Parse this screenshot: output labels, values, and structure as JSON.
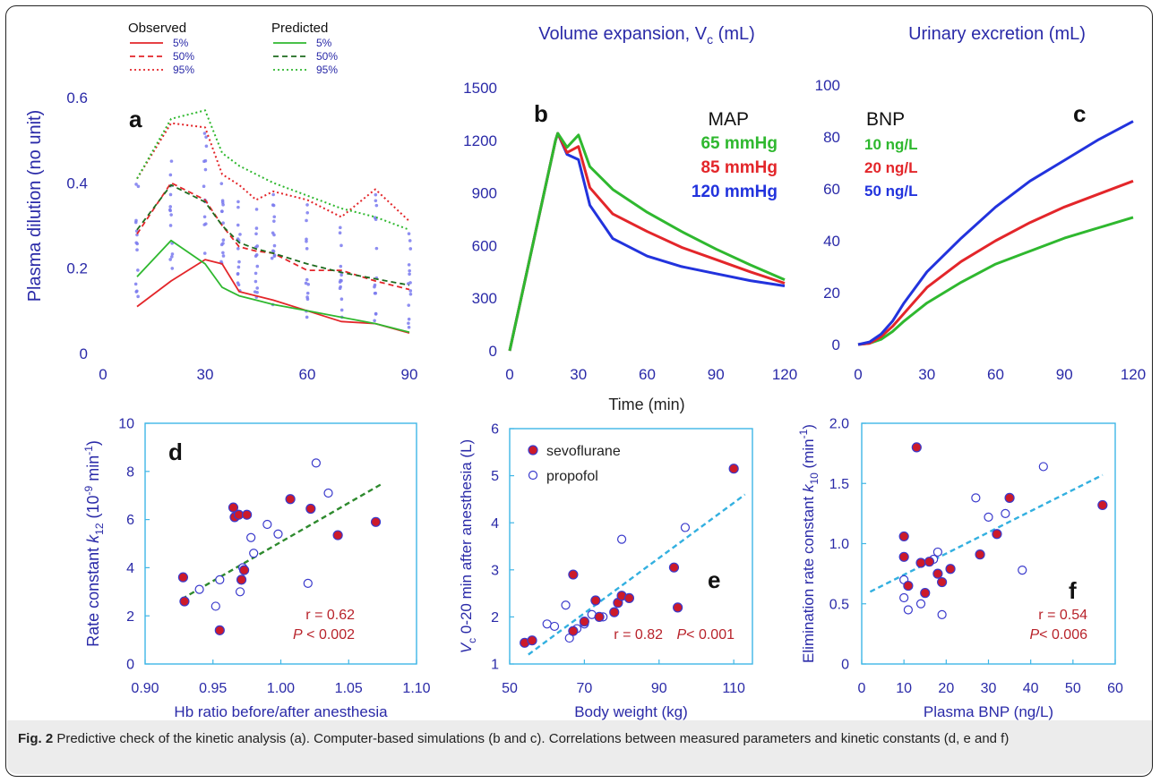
{
  "colors": {
    "blue_text": "#2a2aa8",
    "red": "#e3262a",
    "green": "#2fb82f",
    "darkgreen": "#1e6b1e",
    "blue_line": "#2233dd",
    "panel_border": "#3fb6e6",
    "dot_fill": "#cc1a2a",
    "dot_ring": "#3a3acc",
    "scatter_blue": "#7a7aee",
    "trend_green": "#2e8a2e",
    "trend_cyan": "#33b0e0",
    "annot_red": "#b8232b"
  },
  "caption": {
    "fig": "Fig. 2",
    "text": " Predictive check of the kinetic analysis (a). Computer-based simulations (b and c). Correlations between measured parameters and kinetic constants (d, e and f)"
  },
  "chart_data": [
    {
      "panel": "a",
      "type": "line",
      "ylabel": "Plasma dilution (no unit)",
      "xlim": [
        0,
        90
      ],
      "ylim": [
        0,
        0.6
      ],
      "xticks": [
        0,
        30,
        60,
        90
      ],
      "yticks": [
        0,
        0.2,
        0.4,
        0.6
      ],
      "xtick_labels": [
        "0",
        "30",
        "60",
        "90"
      ],
      "ytick_labels": [
        "0",
        "0.2",
        "0.4",
        "0.6"
      ],
      "legend": {
        "observed_title": "Observed",
        "predicted_title": "Predicted",
        "labels": [
          "5%",
          "50%",
          "95%"
        ]
      },
      "series": [
        {
          "name": "Observed 5%",
          "x": [
            10,
            20,
            30,
            35,
            40,
            50,
            60,
            70,
            80,
            90
          ],
          "y": [
            0.11,
            0.17,
            0.22,
            0.21,
            0.145,
            0.125,
            0.1,
            0.075,
            0.07,
            0.048
          ]
        },
        {
          "name": "Observed 50%",
          "x": [
            10,
            20,
            30,
            35,
            40,
            45,
            50,
            60,
            70,
            80,
            90
          ],
          "y": [
            0.28,
            0.4,
            0.36,
            0.3,
            0.25,
            0.24,
            0.235,
            0.195,
            0.195,
            0.17,
            0.15
          ]
        },
        {
          "name": "Observed 95%",
          "x": [
            10,
            20,
            30,
            35,
            40,
            45,
            50,
            60,
            70,
            80,
            90
          ],
          "y": [
            0.41,
            0.54,
            0.53,
            0.42,
            0.395,
            0.36,
            0.38,
            0.36,
            0.32,
            0.385,
            0.31
          ]
        },
        {
          "name": "Predicted 5%",
          "x": [
            10,
            20,
            30,
            35,
            40,
            45,
            50,
            60,
            70,
            80,
            90
          ],
          "y": [
            0.18,
            0.265,
            0.21,
            0.155,
            0.135,
            0.125,
            0.115,
            0.1,
            0.085,
            0.07,
            0.05
          ]
        },
        {
          "name": "Predicted 50%",
          "x": [
            10,
            20,
            30,
            35,
            40,
            45,
            50,
            60,
            70,
            80,
            90
          ],
          "y": [
            0.29,
            0.395,
            0.355,
            0.3,
            0.26,
            0.245,
            0.235,
            0.21,
            0.19,
            0.175,
            0.16
          ]
        },
        {
          "name": "Predicted 95%",
          "x": [
            10,
            20,
            30,
            35,
            40,
            50,
            60,
            70,
            80,
            90
          ],
          "y": [
            0.41,
            0.55,
            0.57,
            0.47,
            0.44,
            0.4,
            0.37,
            0.34,
            0.32,
            0.29
          ]
        }
      ]
    },
    {
      "panel": "b",
      "type": "line",
      "title": "Volume expansion, V",
      "title_sub": "c",
      "title_unit": " (mL)",
      "xlabel": "Time (min)",
      "xlim": [
        0,
        120
      ],
      "ylim": [
        0,
        1500
      ],
      "xticks": [
        0,
        30,
        60,
        90,
        120
      ],
      "yticks": [
        0,
        300,
        600,
        900,
        1200,
        1500
      ],
      "xtick_labels": [
        "0",
        "30",
        "60",
        "90",
        "120"
      ],
      "ytick_labels": [
        "0",
        "300",
        "600",
        "900",
        "1200",
        "1500"
      ],
      "legend_title": "MAP",
      "series": [
        {
          "name": "65 mmHg",
          "x": [
            0,
            20,
            21,
            25,
            30,
            35,
            45,
            60,
            75,
            90,
            105,
            120
          ],
          "y": [
            0,
            1200,
            1240,
            1160,
            1230,
            1050,
            920,
            790,
            680,
            580,
            490,
            405
          ]
        },
        {
          "name": "85 mmHg",
          "x": [
            0,
            20,
            21,
            25,
            30,
            35,
            45,
            60,
            75,
            90,
            105,
            120
          ],
          "y": [
            0,
            1200,
            1240,
            1130,
            1165,
            930,
            780,
            680,
            590,
            520,
            450,
            385
          ]
        },
        {
          "name": "120 mmHg",
          "x": [
            0,
            20,
            21,
            25,
            30,
            35,
            45,
            60,
            75,
            90,
            105,
            120
          ],
          "y": [
            0,
            1200,
            1240,
            1120,
            1090,
            830,
            640,
            540,
            480,
            440,
            400,
            370
          ]
        }
      ]
    },
    {
      "panel": "c",
      "type": "line",
      "title": "Urinary excretion (mL)",
      "xlim": [
        0,
        120
      ],
      "ylim": [
        0,
        100
      ],
      "xticks": [
        0,
        30,
        60,
        90,
        120
      ],
      "yticks": [
        0,
        20,
        40,
        60,
        80,
        100
      ],
      "xtick_labels": [
        "0",
        "30",
        "60",
        "90",
        "120"
      ],
      "ytick_labels": [
        "0",
        "20",
        "40",
        "60",
        "80",
        "100"
      ],
      "legend_title": "BNP",
      "series": [
        {
          "name": "10 ng/L",
          "x": [
            0,
            5,
            10,
            15,
            20,
            30,
            45,
            60,
            75,
            90,
            105,
            120
          ],
          "y": [
            0,
            0.5,
            2,
            5,
            9,
            16,
            24,
            31,
            36,
            41,
            45,
            49
          ]
        },
        {
          "name": "20 ng/L",
          "x": [
            0,
            5,
            10,
            15,
            20,
            30,
            45,
            60,
            75,
            90,
            105,
            120
          ],
          "y": [
            0,
            0.5,
            3,
            7,
            12,
            22,
            32,
            40,
            47,
            53,
            58,
            63
          ]
        },
        {
          "name": "50 ng/L",
          "x": [
            0,
            5,
            10,
            15,
            20,
            30,
            45,
            60,
            75,
            90,
            105,
            120
          ],
          "y": [
            0,
            1,
            4,
            9,
            16,
            28,
            41,
            53,
            63,
            71,
            79,
            86
          ]
        }
      ]
    },
    {
      "panel": "d",
      "type": "scatter",
      "xlabel": "Hb ratio before/after anesthesia",
      "ylabel_parts": [
        "Rate constant ",
        "k",
        "12",
        " (10",
        "-9",
        " min",
        "-1",
        ")"
      ],
      "xlim": [
        0.9,
        1.1
      ],
      "ylim": [
        0,
        10
      ],
      "xticks": [
        0.9,
        0.95,
        1.0,
        1.05,
        1.1
      ],
      "yticks": [
        0,
        2,
        4,
        6,
        8,
        10
      ],
      "xtick_labels": [
        "0.90",
        "0.95",
        "1.00",
        "1.05",
        "1.10"
      ],
      "ytick_labels": [
        "0",
        "2",
        "4",
        "6",
        "8",
        "10"
      ],
      "r_text": "r = 0.62",
      "p_label": "P",
      "p_text": " < 0.002",
      "trend": {
        "x": [
          0.927,
          1.075
        ],
        "y": [
          2.7,
          7.5
        ]
      },
      "filled": {
        "x": [
          0.928,
          0.929,
          0.955,
          0.965,
          0.966,
          0.969,
          0.971,
          0.973,
          0.975,
          1.007,
          1.022,
          1.042,
          1.07
        ],
        "y": [
          3.6,
          2.6,
          1.4,
          6.5,
          6.1,
          6.2,
          3.5,
          3.9,
          6.2,
          6.85,
          6.45,
          5.35,
          5.9
        ]
      },
      "open": {
        "x": [
          0.94,
          0.952,
          0.955,
          0.97,
          0.972,
          0.978,
          0.98,
          0.99,
          0.998,
          1.02,
          1.026,
          1.035
        ],
        "y": [
          3.1,
          2.4,
          3.5,
          3.0,
          4.0,
          5.25,
          4.6,
          5.8,
          5.4,
          3.35,
          8.35,
          7.1
        ]
      }
    },
    {
      "panel": "e",
      "type": "scatter",
      "xlabel": "Body weight (kg)",
      "ylabel_parts": [
        "V",
        "c",
        " 0-20 min after anesthesia (L)"
      ],
      "xlim": [
        50,
        115
      ],
      "ylim": [
        1,
        6
      ],
      "xticks": [
        50,
        70,
        90,
        110
      ],
      "yticks": [
        1,
        2,
        3,
        4,
        5,
        6
      ],
      "xtick_labels": [
        "50",
        "70",
        "90",
        "110"
      ],
      "ytick_labels": [
        "1",
        "2",
        "3",
        "4",
        "5",
        "6"
      ],
      "legend": [
        "sevoflurane",
        "propofol"
      ],
      "r_text": "r = 0.82",
      "p_label": "P",
      "p_text": "< 0.001",
      "trend": {
        "x": [
          55,
          113
        ],
        "y": [
          1.2,
          4.6
        ]
      },
      "filled": {
        "x": [
          54,
          56,
          67,
          67,
          70,
          73,
          74,
          78,
          79,
          80,
          82,
          94,
          95,
          110
        ],
        "y": [
          1.45,
          1.5,
          1.7,
          2.9,
          1.9,
          2.35,
          2.0,
          2.1,
          2.3,
          2.45,
          2.4,
          3.05,
          2.2,
          5.15
        ]
      },
      "open": {
        "x": [
          60,
          62,
          65,
          66,
          68,
          70,
          72,
          75,
          80,
          97
        ],
        "y": [
          1.85,
          1.8,
          2.25,
          1.55,
          1.75,
          1.85,
          2.05,
          2.0,
          3.65,
          3.9
        ]
      }
    },
    {
      "panel": "f",
      "type": "scatter",
      "xlabel": "Plasma BNP (ng/L)",
      "ylabel_parts": [
        "Elimination rate constant ",
        "k",
        "10",
        " (min",
        "-1",
        ")"
      ],
      "xlim": [
        0,
        60
      ],
      "ylim": [
        0,
        2.0
      ],
      "xticks": [
        0,
        10,
        20,
        30,
        40,
        50,
        60
      ],
      "yticks": [
        0,
        0.5,
        1.0,
        1.5,
        2.0
      ],
      "xtick_labels": [
        "0",
        "10",
        "20",
        "30",
        "40",
        "50",
        "60"
      ],
      "ytick_labels": [
        "0",
        "0.5",
        "1.0",
        "1.5",
        "2.0"
      ],
      "r_text": "r = 0.54",
      "p_label": "P",
      "p_text": "< 0.006",
      "trend": {
        "x": [
          2,
          57
        ],
        "y": [
          0.6,
          1.57
        ]
      },
      "filled": {
        "x": [
          10,
          10,
          11,
          13,
          14,
          15,
          16,
          18,
          19,
          21,
          28,
          32,
          35,
          57
        ],
        "y": [
          1.06,
          0.89,
          0.65,
          1.8,
          0.84,
          0.59,
          0.85,
          0.75,
          0.68,
          0.79,
          0.91,
          1.08,
          1.38,
          1.32
        ]
      },
      "open": {
        "x": [
          10,
          10,
          11,
          14,
          17,
          18,
          19,
          27,
          30,
          34,
          38,
          43
        ],
        "y": [
          0.7,
          0.55,
          0.45,
          0.5,
          0.87,
          0.93,
          0.41,
          1.38,
          1.22,
          1.25,
          0.78,
          1.64
        ]
      }
    }
  ]
}
